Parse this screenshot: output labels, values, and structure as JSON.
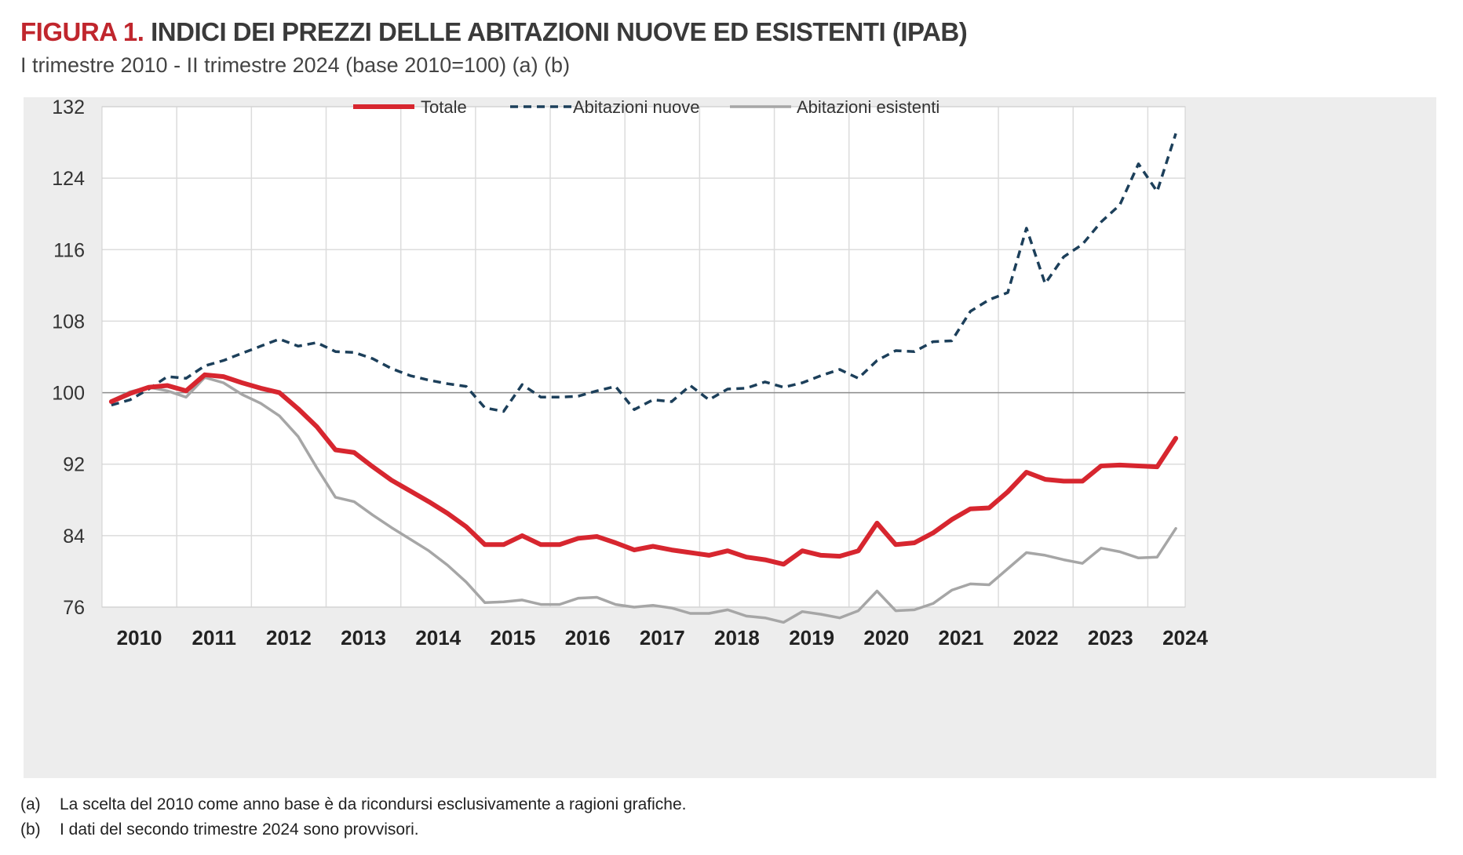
{
  "figure": {
    "label": "FIGURA 1.",
    "title": "INDICI DEI PREZZI DELLE ABITAZIONI NUOVE ED ESISTENTI (IPAB)",
    "subtitle": "I trimestre 2010 - II trimestre 2024 (base 2010=100) (a) (b)"
  },
  "notes": [
    {
      "key": "(a)",
      "text": "La scelta del 2010 come anno base è da ricondursi esclusivamente a ragioni grafiche."
    },
    {
      "key": "(b)",
      "text": "I dati del secondo trimestre 2024 sono provvisori."
    }
  ],
  "colors": {
    "totale": "#d7262f",
    "nuove": "#1c3f5a",
    "esistenti": "#a6a6a6",
    "panel": "#ededed",
    "grid": "#ffffff",
    "baseline": "#8c8c8c"
  },
  "chart_data": {
    "type": "line",
    "title": "INDICI DEI PREZZI DELLE ABITAZIONI NUOVE ED ESISTENTI (IPAB)",
    "subtitle": "I trimestre 2010 - II trimestre 2024 (base 2010=100) (a) (b)",
    "xlabel": "",
    "ylabel": "",
    "ylim": [
      76,
      132
    ],
    "yticks": [
      76,
      84,
      92,
      100,
      108,
      116,
      124,
      132
    ],
    "xticks": [
      "2010",
      "2011",
      "2012",
      "2013",
      "2014",
      "2015",
      "2016",
      "2017",
      "2018",
      "2019",
      "2020",
      "2021",
      "2022",
      "2023",
      "2024"
    ],
    "reference_line": 100,
    "grid": true,
    "legend_position": "top",
    "x": [
      "2010 T1",
      "2010 T2",
      "2010 T3",
      "2010 T4",
      "2011 T1",
      "2011 T2",
      "2011 T3",
      "2011 T4",
      "2012 T1",
      "2012 T2",
      "2012 T3",
      "2012 T4",
      "2013 T1",
      "2013 T2",
      "2013 T3",
      "2013 T4",
      "2014 T1",
      "2014 T2",
      "2014 T3",
      "2014 T4",
      "2015 T1",
      "2015 T2",
      "2015 T3",
      "2015 T4",
      "2016 T1",
      "2016 T2",
      "2016 T3",
      "2016 T4",
      "2017 T1",
      "2017 T2",
      "2017 T3",
      "2017 T4",
      "2018 T1",
      "2018 T2",
      "2018 T3",
      "2018 T4",
      "2019 T1",
      "2019 T2",
      "2019 T3",
      "2019 T4",
      "2020 T1",
      "2020 T2",
      "2020 T3",
      "2020 T4",
      "2021 T1",
      "2021 T2",
      "2021 T3",
      "2021 T4",
      "2022 T1",
      "2022 T2",
      "2022 T3",
      "2022 T4",
      "2023 T1",
      "2023 T2",
      "2023 T3",
      "2023 T4",
      "2024 T1",
      "2024 T2"
    ],
    "series": [
      {
        "name": "Totale",
        "style": "solid-thick",
        "values": [
          99.0,
          99.9,
          100.6,
          100.8,
          100.2,
          102.0,
          101.8,
          101.1,
          100.5,
          100.0,
          98.2,
          96.2,
          93.6,
          93.3,
          91.7,
          90.2,
          89.0,
          87.8,
          86.5,
          85.0,
          83.0,
          83.0,
          84.0,
          83.0,
          83.0,
          83.7,
          83.9,
          83.2,
          82.4,
          82.8,
          82.4,
          82.1,
          81.8,
          82.3,
          81.6,
          81.3,
          80.8,
          82.3,
          81.8,
          81.7,
          82.3,
          85.4,
          83.0,
          83.2,
          84.3,
          85.8,
          87.0,
          87.1,
          88.9,
          91.1,
          90.3,
          90.1,
          90.1,
          91.8,
          91.9,
          91.8,
          91.7,
          94.9
        ]
      },
      {
        "name": "Abitazioni nuove",
        "style": "dashed",
        "values": [
          98.6,
          99.2,
          100.4,
          101.8,
          101.6,
          103.0,
          103.6,
          104.4,
          105.2,
          106.0,
          105.2,
          105.6,
          104.6,
          104.5,
          103.8,
          102.7,
          101.9,
          101.4,
          101.0,
          100.7,
          98.3,
          97.9,
          100.9,
          99.5,
          99.5,
          99.6,
          100.2,
          100.7,
          98.1,
          99.2,
          99.0,
          100.8,
          99.2,
          100.4,
          100.5,
          101.2,
          100.6,
          101.1,
          101.9,
          102.6,
          101.6,
          103.6,
          104.7,
          104.6,
          105.7,
          105.8,
          109.1,
          110.4,
          111.2,
          118.4,
          112.2,
          115.2,
          116.6,
          119.1,
          121.0,
          125.6,
          122.5,
          129.0
        ]
      },
      {
        "name": "Abitazioni esistenti",
        "style": "solid",
        "values": [
          99.1,
          100.1,
          100.6,
          100.2,
          99.5,
          101.7,
          101.1,
          99.8,
          98.8,
          97.4,
          95.1,
          91.6,
          88.3,
          87.8,
          86.3,
          84.9,
          83.6,
          82.3,
          80.7,
          78.8,
          76.5,
          76.6,
          76.8,
          76.3,
          76.3,
          77.0,
          77.1,
          76.3,
          76.0,
          76.2,
          75.9,
          75.3,
          75.3,
          75.7,
          75.0,
          74.8,
          74.3,
          75.5,
          75.2,
          74.8,
          75.6,
          77.8,
          75.6,
          75.7,
          76.4,
          77.9,
          78.6,
          78.5,
          80.3,
          82.1,
          81.8,
          81.3,
          80.9,
          82.6,
          82.2,
          81.5,
          81.6,
          84.8
        ]
      }
    ]
  }
}
